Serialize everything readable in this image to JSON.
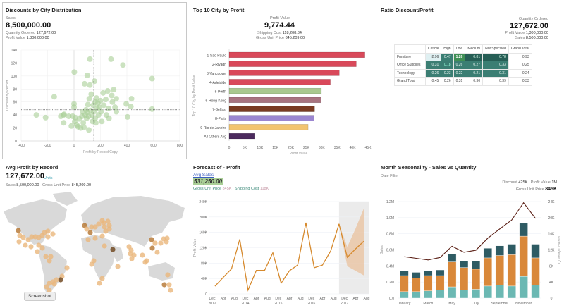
{
  "scatter_panel": {
    "title": "Discounts by City Distribution",
    "kpi_label": "Sales",
    "kpi_value": "8,500,000.00",
    "qty_label": "Quantity Ordered",
    "qty_value": "127,672.00",
    "profit_label": "Profit Value",
    "profit_value": "1,300,000.00"
  },
  "bar_panel": {
    "title": "Top 10 City by Profit",
    "kpi_label": "Profit Value",
    "kpi_value": "9,774.44",
    "ship_label": "Shipping Cost",
    "ship_value": "118,208.84",
    "gup_label": "Gross Unit Price",
    "gup_value": "845,209.00"
  },
  "ratio_panel": {
    "title": "Ratio Discount/Profit",
    "kpi_label": "Quantity Ordered",
    "kpi_value": "127,672.00",
    "profit_label": "Profit Value",
    "profit_value": "1,300,000.00",
    "sales_label": "Sales",
    "sales_value": "8,500,000.00"
  },
  "map_panel": {
    "title": "Avg Profit by Record",
    "kpi_value": "127,672.00",
    "kpi_unit": "Units",
    "sales_label": "Sales",
    "sales_value": "8,500,000.00",
    "gup_label": "Gross Unit Price",
    "gup_value": "845,209.00",
    "tooltip": "Screenshot"
  },
  "forecast_panel": {
    "title": "Forecast of - Profit",
    "avg_label": "Avg Sales",
    "avg_value": "531,250.00",
    "gup_label": "Gross Unit Price",
    "gup_value": "845K",
    "ship_label": "Shipping Cost",
    "ship_value": "118K"
  },
  "season_panel": {
    "title": "Month Seasonality - Sales vs Quantity",
    "filter_label": "Date Filter",
    "discount_label": "Discount",
    "discount_value": "425K",
    "profit_label": "Profit Value",
    "profit_value": "1M",
    "gup_label": "Gross Unit Price",
    "gup_value": "845K"
  },
  "chart_data": [
    {
      "type": "scatter",
      "xlabel": "Profit by Record Copy",
      "ylabel": "Discount by Record",
      "xlim": [
        -400,
        800
      ],
      "ylim": [
        0,
        140
      ],
      "xticks": [
        "-400",
        "-200",
        "0",
        "200",
        "400",
        "600",
        "800"
      ],
      "yticks": [
        "0",
        "20",
        "40",
        "60",
        "80",
        "100",
        "120",
        "140"
      ],
      "reference_lines": {
        "x": 150,
        "y": 48
      },
      "grid": true,
      "color": "#a8cf96",
      "points": [
        [
          -285,
          40
        ],
        [
          -215,
          36
        ],
        [
          -150,
          68
        ],
        [
          -100,
          38
        ],
        [
          -80,
          40
        ],
        [
          -78,
          28
        ],
        [
          -75,
          41
        ],
        [
          -40,
          38
        ],
        [
          -20,
          23
        ],
        [
          -10,
          38
        ],
        [
          0,
          52
        ],
        [
          0,
          57
        ],
        [
          2,
          106
        ],
        [
          5,
          30
        ],
        [
          10,
          36
        ],
        [
          20,
          25
        ],
        [
          30,
          22
        ],
        [
          40,
          34
        ],
        [
          50,
          20
        ],
        [
          60,
          38
        ],
        [
          65,
          45
        ],
        [
          70,
          28
        ],
        [
          75,
          21
        ],
        [
          80,
          88
        ],
        [
          85,
          40
        ],
        [
          90,
          48
        ],
        [
          95,
          35
        ],
        [
          100,
          44
        ],
        [
          100,
          101
        ],
        [
          105,
          56
        ],
        [
          110,
          38
        ],
        [
          112,
          17
        ],
        [
          115,
          65
        ],
        [
          120,
          126
        ],
        [
          120,
          86
        ],
        [
          125,
          47
        ],
        [
          130,
          72
        ],
        [
          135,
          40
        ],
        [
          140,
          30
        ],
        [
          145,
          55
        ],
        [
          150,
          45
        ],
        [
          155,
          92
        ],
        [
          160,
          60
        ],
        [
          160,
          35
        ],
        [
          165,
          28
        ],
        [
          170,
          66
        ],
        [
          175,
          50
        ],
        [
          180,
          58
        ],
        [
          185,
          40
        ],
        [
          190,
          52
        ],
        [
          200,
          62
        ],
        [
          205,
          45
        ],
        [
          210,
          30
        ],
        [
          220,
          74
        ],
        [
          225,
          55
        ],
        [
          240,
          64
        ],
        [
          245,
          40
        ],
        [
          255,
          77
        ],
        [
          260,
          50
        ],
        [
          265,
          35
        ],
        [
          280,
          126
        ],
        [
          285,
          70
        ],
        [
          290,
          60
        ],
        [
          300,
          79
        ],
        [
          310,
          52
        ],
        [
          320,
          65
        ],
        [
          320,
          45
        ],
        [
          370,
          117
        ],
        [
          395,
          57
        ],
        [
          405,
          37
        ],
        [
          430,
          53
        ],
        [
          435,
          65
        ],
        [
          590,
          96
        ],
        [
          590,
          49
        ]
      ]
    },
    {
      "type": "bar",
      "orientation": "horizontal",
      "xlabel": "Profit Value",
      "ylabel": "Top 10 City by Profit Value",
      "xlim": [
        0,
        45000
      ],
      "xticks": [
        "0",
        "5K",
        "10K",
        "15K",
        "20K",
        "25K",
        "30K",
        "35K",
        "40K",
        "45K"
      ],
      "categories": [
        "1-Sao Paulo",
        "2-Riyadh",
        "3-Vancouver",
        "4-Adelaide",
        "5-Perth",
        "6-Hong Kong",
        "7-Belfast",
        "8-Paris",
        "9-Rio de Janeiro",
        "All Others Avg"
      ],
      "values": [
        44000,
        41200,
        35700,
        32800,
        29900,
        29800,
        27700,
        27500,
        25600,
        8200
      ],
      "colors": [
        "#d9495a",
        "#d9495a",
        "#d9495a",
        "#d9495a",
        "#a9c98f",
        "#a87480",
        "#7a3b22",
        "#9b86d0",
        "#f2c46f",
        "#4b2a5e"
      ]
    },
    {
      "type": "heatmap",
      "columns": [
        "",
        "Critical",
        "High",
        "Low",
        "Medium",
        "Not Specified",
        "Grand Total"
      ],
      "rows": [
        {
          "label": "Furniture",
          "values": [
            "-2.96",
            "0.47",
            "1.26",
            "0.81",
            "0.78",
            "0.93"
          ]
        },
        {
          "label": "Office Supplies",
          "values": [
            "0.31",
            "0.18",
            "0.26",
            "0.27",
            "0.33",
            "0.25"
          ]
        },
        {
          "label": "Technology",
          "values": [
            "0.26",
            "0.23",
            "0.22",
            "0.21",
            "0.31",
            "0.24"
          ]
        },
        {
          "label": "Grand Total",
          "values": [
            "0.45",
            "0.26",
            "0.31",
            "0.30",
            "0.39",
            "0.33"
          ]
        }
      ]
    },
    {
      "type": "line",
      "ylabel": "Profit Value",
      "ylim": [
        0,
        240000
      ],
      "yticks": [
        "0",
        "40K",
        "80K",
        "120K",
        "160K",
        "200K",
        "240K"
      ],
      "color": "#d68a2e",
      "xticks": [
        [
          "Dec",
          "2012"
        ],
        [
          "Apr",
          ""
        ],
        [
          "Aug",
          ""
        ],
        [
          "Dec",
          "2014"
        ],
        [
          "Apr",
          ""
        ],
        [
          "Aug",
          ""
        ],
        [
          "Dec",
          "2015"
        ],
        [
          "Apr",
          ""
        ],
        [
          "Aug",
          ""
        ],
        [
          "Dec",
          "2016"
        ],
        [
          "Apr",
          ""
        ],
        [
          "Aug",
          ""
        ],
        [
          "Dec",
          "2017"
        ],
        [
          "Apr",
          ""
        ],
        [
          "Aug",
          ""
        ]
      ],
      "actual": [
        [
          "2013-01",
          20000
        ],
        [
          "2013-04",
          43000
        ],
        [
          "2013-07",
          65000
        ],
        [
          "2013-10",
          142000
        ],
        [
          "2014-01",
          10000
        ],
        [
          "2014-04",
          61000
        ],
        [
          "2014-07",
          61000
        ],
        [
          "2014-10",
          107000
        ],
        [
          "2015-01",
          28000
        ],
        [
          "2015-04",
          60000
        ],
        [
          "2015-07",
          75000
        ],
        [
          "2015-10",
          185000
        ],
        [
          "2016-01",
          68000
        ],
        [
          "2016-04",
          75000
        ],
        [
          "2016-07",
          112000
        ],
        [
          "2016-10",
          182000
        ]
      ],
      "forecast": [
        [
          "2016-10",
          182000,
          182000,
          182000
        ],
        [
          "2017-01",
          95000,
          72000,
          122000
        ],
        [
          "2017-04",
          117000,
          60000,
          170000
        ],
        [
          "2017-07",
          137000,
          48000,
          222000
        ]
      ]
    },
    {
      "type": "bar",
      "stacked": true,
      "ylabel": "Sales",
      "y2label": "Quantity Ordered",
      "ylim": [
        0,
        1.2
      ],
      "yticks": [
        "0.0",
        "0.2M",
        "0.4M",
        "0.6M",
        "0.8M",
        "1.0M",
        "1.2M"
      ],
      "y2lim": [
        0,
        24000
      ],
      "y2ticks": [
        "0",
        "4K",
        "8K",
        "12K",
        "16K",
        "20K",
        "24K"
      ],
      "categories": [
        "January",
        "February",
        "March",
        "April",
        "May",
        "June",
        "July",
        "August",
        "September",
        "October",
        "November",
        "December"
      ],
      "xtick_labels": [
        "January",
        "",
        "March",
        "",
        "May",
        "",
        "July",
        "",
        "September",
        "",
        "November",
        ""
      ],
      "series": [
        {
          "values": [
            0.08,
            0.08,
            0.09,
            0.1,
            0.14,
            0.1,
            0.11,
            0.15,
            0.16,
            0.15,
            0.27,
            0.16
          ],
          "color": "#6bb8b3"
        },
        {
          "values": [
            0.2,
            0.17,
            0.19,
            0.18,
            0.31,
            0.28,
            0.25,
            0.35,
            0.37,
            0.39,
            0.5,
            0.34
          ],
          "color": "#d9883a"
        },
        {
          "values": [
            0.06,
            0.07,
            0.06,
            0.07,
            0.1,
            0.08,
            0.1,
            0.12,
            0.12,
            0.13,
            0.16,
            0.17
          ],
          "color": "#2e5b63"
        }
      ],
      "line": {
        "values": [
          10300,
          9900,
          9500,
          10100,
          12900,
          11400,
          11900,
          14900,
          17200,
          19400,
          23700,
          19800
        ],
        "color": "#5a1e14"
      }
    }
  ]
}
